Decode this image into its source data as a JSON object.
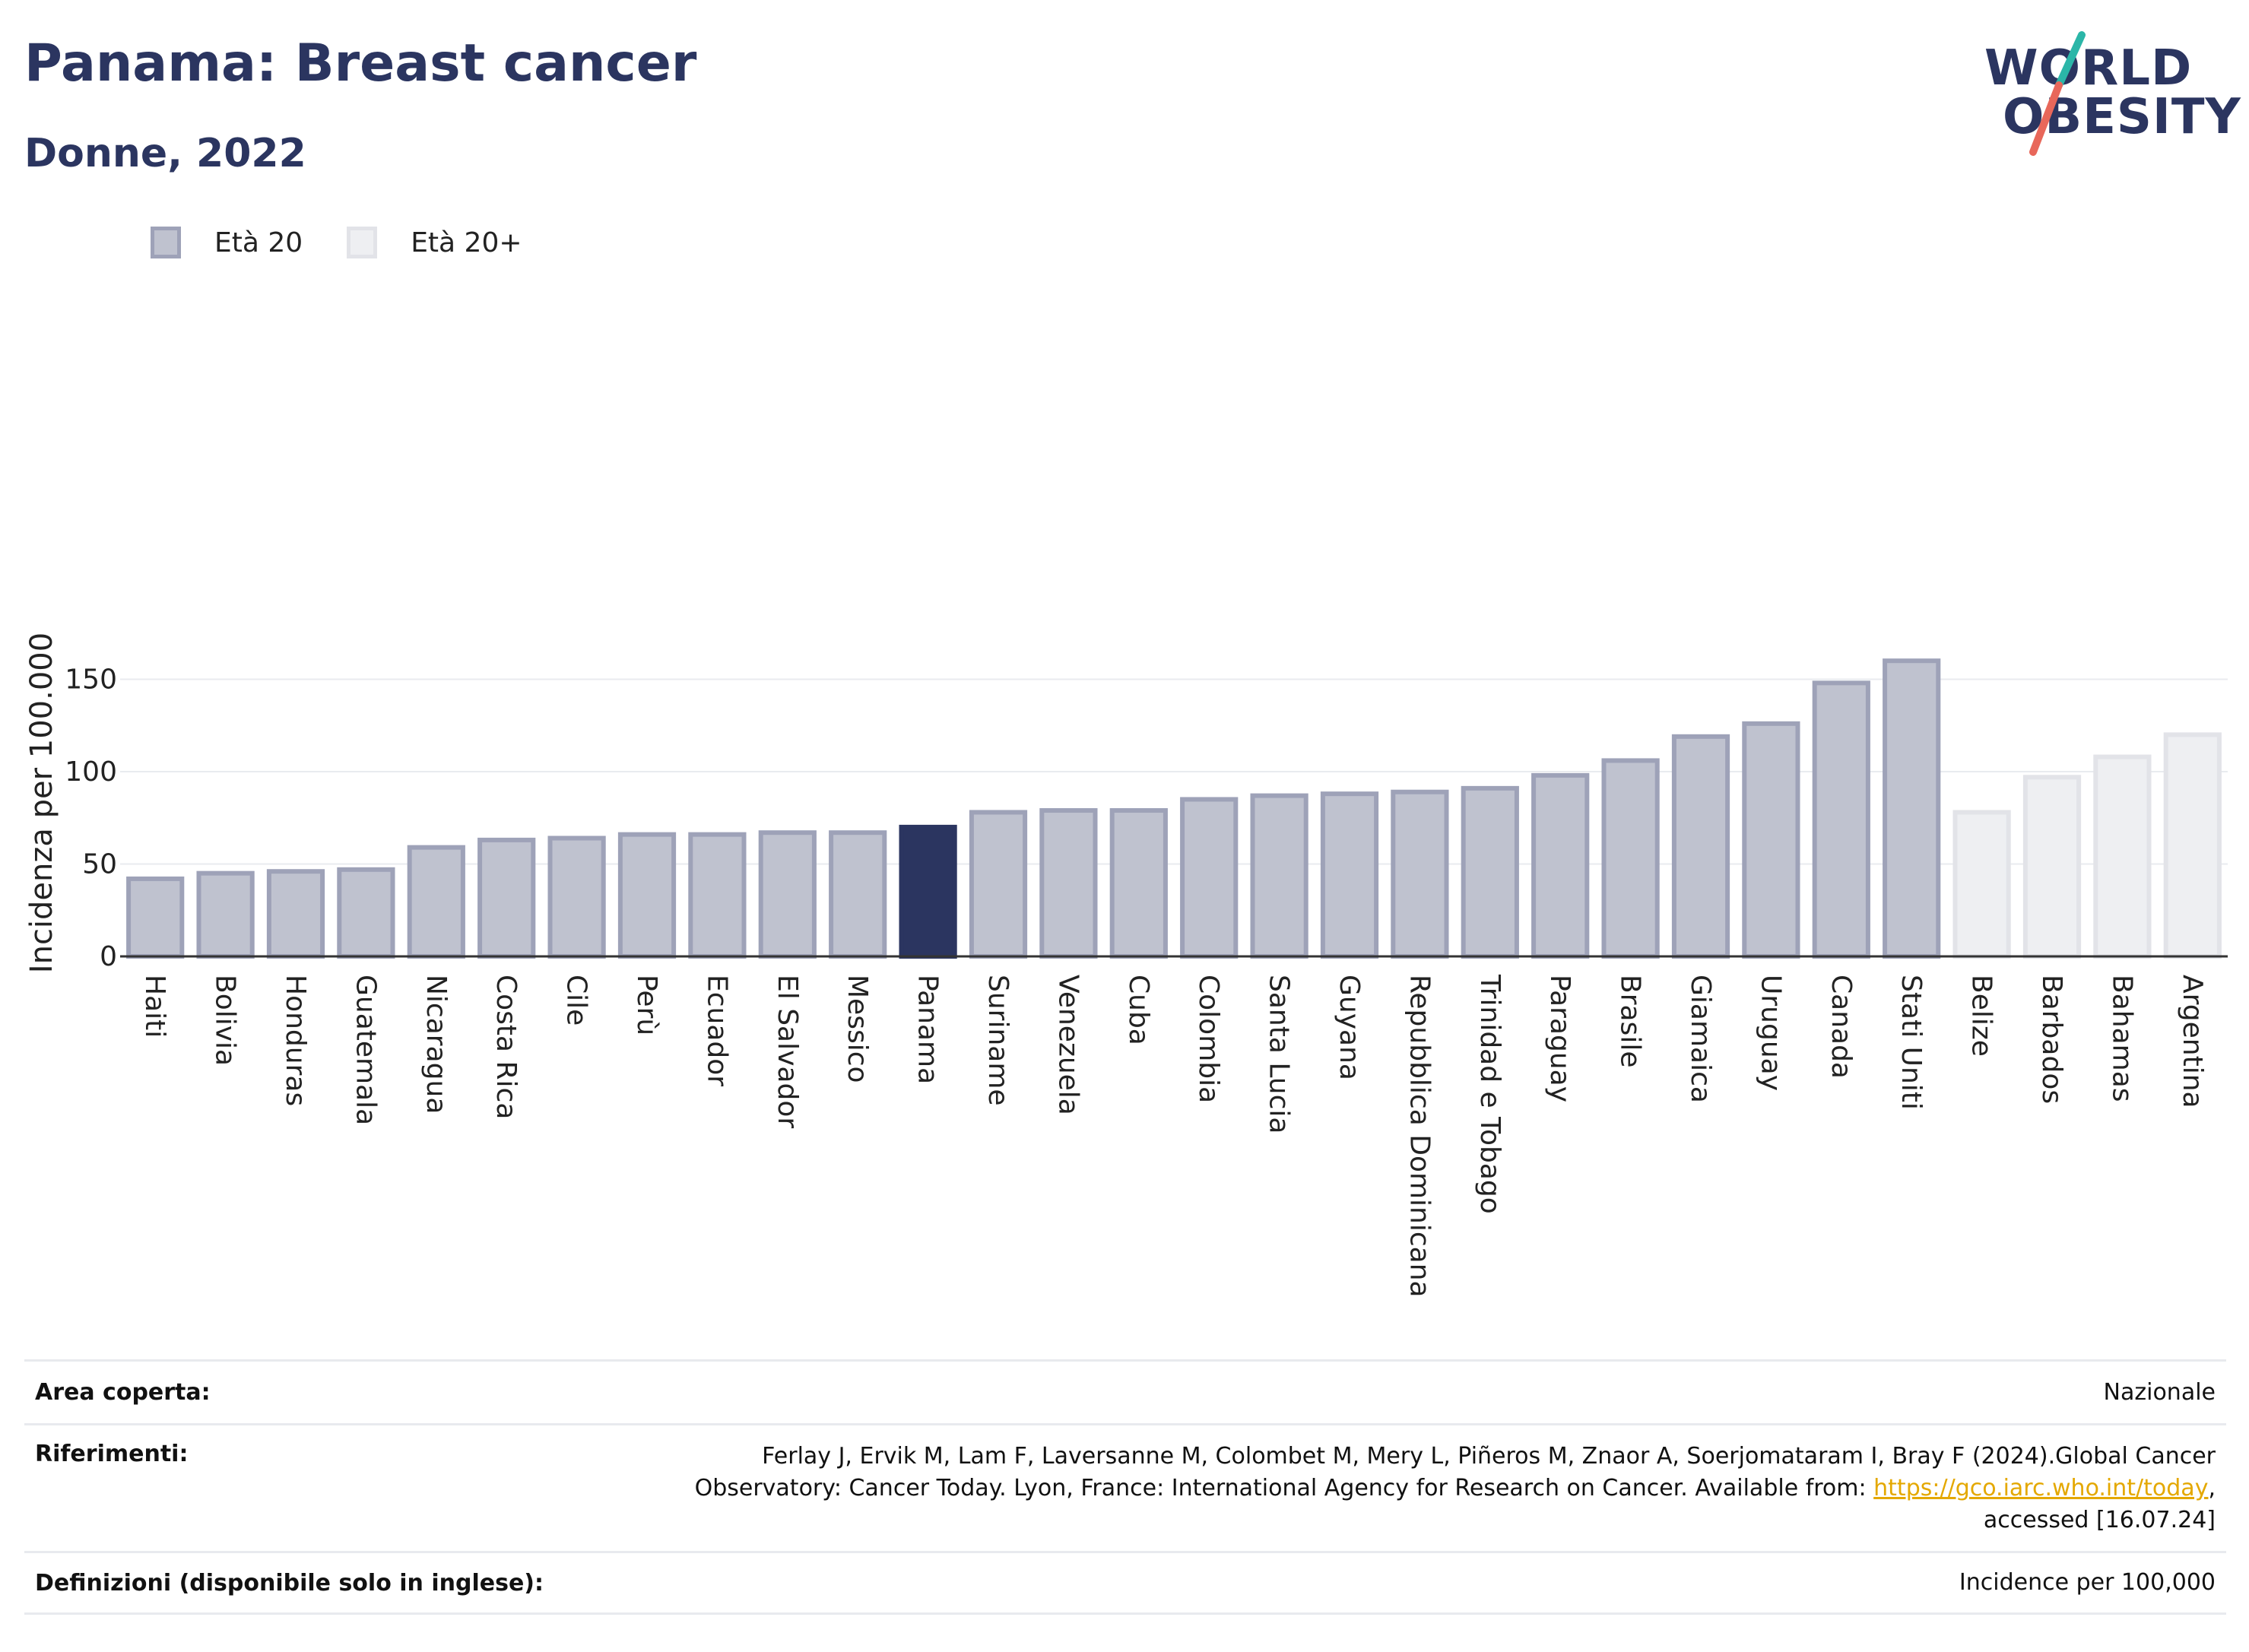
{
  "header": {
    "title": "Panama: Breast cancer",
    "subtitle": "Donne, 2022"
  },
  "logo": {
    "line1": "WORLD",
    "line2": "OBESITY",
    "accent_colors": [
      "#2bb6a8",
      "#e8675a"
    ]
  },
  "legend": [
    {
      "label": "Età 20",
      "color": "#bfc2cf"
    },
    {
      "label": "Età 20+",
      "color": "#eeeff2"
    }
  ],
  "chart_data": {
    "type": "bar",
    "ylabel": "Incidenza per 100.000",
    "ylim": [
      0,
      175
    ],
    "yticks": [
      0,
      50,
      100,
      150
    ],
    "grid": true,
    "categories": [
      "Haiti",
      "Bolivia",
      "Honduras",
      "Guatemala",
      "Nicaragua",
      "Costa Rica",
      "Cile",
      "Perù",
      "Ecuador",
      "El Salvador",
      "Messico",
      "Panama",
      "Suriname",
      "Venezuela",
      "Cuba",
      "Colombia",
      "Santa Lucia",
      "Guyana",
      "Repubblica Dominicana",
      "Trinidad e Tobago",
      "Paraguay",
      "Brasile",
      "Giamaica",
      "Uruguay",
      "Canada",
      "Stati Uniti",
      "Belize",
      "Barbados",
      "Bahamas",
      "Argentina"
    ],
    "values": [
      42,
      45,
      46,
      47,
      59,
      63,
      64,
      66,
      66,
      67,
      67,
      70,
      78,
      79,
      79,
      85,
      87,
      88,
      89,
      91,
      98,
      106,
      119,
      126,
      148,
      160,
      78,
      97,
      108,
      120
    ],
    "groups": [
      "Età 20",
      "Età 20",
      "Età 20",
      "Età 20",
      "Età 20",
      "Età 20",
      "Età 20",
      "Età 20",
      "Età 20",
      "Età 20",
      "Età 20",
      "Età 20",
      "Età 20",
      "Età 20",
      "Età 20",
      "Età 20",
      "Età 20",
      "Età 20",
      "Età 20",
      "Età 20",
      "Età 20",
      "Età 20",
      "Età 20",
      "Età 20",
      "Età 20",
      "Età 20",
      "Età 20+",
      "Età 20+",
      "Età 20+",
      "Età 20+"
    ],
    "highlight": "Panama",
    "colors": {
      "bar": "#bfc2cf",
      "bar_border": "#9ea2b8",
      "bar_plus": "#eeeff2",
      "bar_plus_border": "#e2e3e8",
      "highlight": "#2b3560"
    }
  },
  "footer": {
    "area_label": "Area coperta:",
    "area_value": "Nazionale",
    "ref_label": "Riferimenti:",
    "ref_line1": "Ferlay J, Ervik M, Lam F, Laversanne M, Colombet M, Mery L, Piñeros M, Znaor A, Soerjomataram I, Bray F (2024).Global Cancer",
    "ref_line2_pre": "Observatory: Cancer Today. Lyon, France: International Agency for Research on Cancer. Available from: ",
    "ref_link": "https://gco.iarc.who.int/today",
    "ref_line2_post": ",",
    "ref_line3": "accessed [16.07.24]",
    "def_label": "Definizioni (disponibile solo in inglese):",
    "def_value": "Incidence per 100,000"
  }
}
